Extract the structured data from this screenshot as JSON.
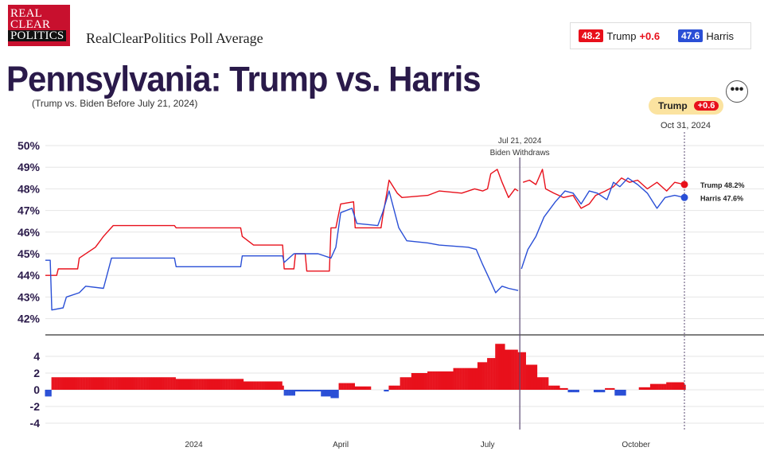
{
  "header": {
    "logo_lines": [
      "REAL",
      "CLEAR",
      "POLITICS"
    ],
    "brand": "RealClearPolitics Poll Average",
    "legend": [
      {
        "value": "48.2",
        "name": "Trump",
        "change": "+0.6",
        "color": "#e8101b"
      },
      {
        "value": "47.6",
        "name": "Harris",
        "change": "",
        "color": "#2a4fd6"
      }
    ],
    "title": "Pennsylvania: Trump vs. Harris",
    "subtitle": "(Trump vs. Biden Before July 21, 2024)",
    "more_icon": "more-options-icon",
    "leader": {
      "name": "Trump",
      "change": "+0.6"
    },
    "current_date": "Oct 31, 2024"
  },
  "chart_data": {
    "type": "line",
    "x_axis": {
      "start": "2023-10-01",
      "end": "2024-10-31",
      "ticks": [
        {
          "label": "2024",
          "date": "2024-01-01"
        },
        {
          "label": "April",
          "date": "2024-04-01"
        },
        {
          "label": "July",
          "date": "2024-07-01"
        },
        {
          "label": "October",
          "date": "2024-10-01"
        }
      ]
    },
    "y_axis": {
      "ylim": [
        41.5,
        50
      ],
      "ticks": [
        42,
        43,
        44,
        45,
        46,
        47,
        48,
        49,
        50
      ],
      "tick_suffix": "%"
    },
    "spread_axis": {
      "ylim": [
        -4.5,
        6
      ],
      "ticks": [
        4,
        2,
        0,
        -2,
        -4
      ]
    },
    "annotation": {
      "date": "2024-07-21",
      "lines": [
        "Jul 21, 2024",
        "Biden Withdraws"
      ]
    },
    "series": [
      {
        "name": "Trump",
        "color": "#e8101b",
        "end_label": "Trump 48.2%",
        "points": [
          [
            "2023-10-01",
            44.0
          ],
          [
            "2023-10-08",
            44.0
          ],
          [
            "2023-10-09",
            44.3
          ],
          [
            "2023-10-21",
            44.3
          ],
          [
            "2023-10-22",
            44.8
          ],
          [
            "2023-11-01",
            45.3
          ],
          [
            "2023-11-06",
            45.8
          ],
          [
            "2023-11-12",
            46.3
          ],
          [
            "2023-12-20",
            46.3
          ],
          [
            "2023-12-21",
            46.2
          ],
          [
            "2024-01-30",
            46.2
          ],
          [
            "2024-01-31",
            45.8
          ],
          [
            "2024-02-07",
            45.4
          ],
          [
            "2024-02-25",
            45.4
          ],
          [
            "2024-02-26",
            44.3
          ],
          [
            "2024-03-03",
            44.3
          ],
          [
            "2024-03-04",
            45.0
          ],
          [
            "2024-03-10",
            45.0
          ],
          [
            "2024-03-11",
            44.2
          ],
          [
            "2024-03-25",
            44.2
          ],
          [
            "2024-03-26",
            46.2
          ],
          [
            "2024-03-29",
            46.2
          ],
          [
            "2024-04-01",
            47.3
          ],
          [
            "2024-04-09",
            47.4
          ],
          [
            "2024-04-10",
            46.2
          ],
          [
            "2024-04-26",
            46.2
          ],
          [
            "2024-04-27",
            46.7
          ],
          [
            "2024-05-01",
            48.4
          ],
          [
            "2024-05-06",
            47.8
          ],
          [
            "2024-05-09",
            47.6
          ],
          [
            "2024-05-25",
            47.7
          ],
          [
            "2024-06-01",
            47.9
          ],
          [
            "2024-06-15",
            47.8
          ],
          [
            "2024-06-23",
            48.0
          ],
          [
            "2024-06-28",
            47.9
          ],
          [
            "2024-07-01",
            48.0
          ],
          [
            "2024-07-03",
            48.7
          ],
          [
            "2024-07-07",
            48.9
          ],
          [
            "2024-07-10",
            48.3
          ],
          [
            "2024-07-14",
            47.6
          ],
          [
            "2024-07-18",
            48.0
          ],
          [
            "2024-07-20",
            47.9
          ],
          [
            "2024-07-23",
            48.3
          ],
          [
            "2024-07-27",
            48.4
          ],
          [
            "2024-07-31",
            48.2
          ],
          [
            "2024-08-04",
            48.9
          ],
          [
            "2024-08-06",
            48.0
          ],
          [
            "2024-08-11",
            47.8
          ],
          [
            "2024-08-17",
            47.6
          ],
          [
            "2024-08-23",
            47.7
          ],
          [
            "2024-08-28",
            47.1
          ],
          [
            "2024-09-02",
            47.3
          ],
          [
            "2024-09-06",
            47.7
          ],
          [
            "2024-09-12",
            47.9
          ],
          [
            "2024-09-17",
            48.1
          ],
          [
            "2024-09-22",
            48.5
          ],
          [
            "2024-09-27",
            48.3
          ],
          [
            "2024-10-02",
            48.4
          ],
          [
            "2024-10-08",
            48.0
          ],
          [
            "2024-10-14",
            48.3
          ],
          [
            "2024-10-20",
            47.9
          ],
          [
            "2024-10-25",
            48.3
          ],
          [
            "2024-10-31",
            48.2
          ]
        ]
      },
      {
        "name": "Harris",
        "color": "#2a4fd6",
        "end_label": "Harris 47.6%",
        "points": [
          [
            "2023-10-01",
            44.7
          ],
          [
            "2023-10-04",
            44.7
          ],
          [
            "2023-10-05",
            42.4
          ],
          [
            "2023-10-12",
            42.5
          ],
          [
            "2023-10-14",
            43.0
          ],
          [
            "2023-10-22",
            43.2
          ],
          [
            "2023-10-26",
            43.5
          ],
          [
            "2023-11-06",
            43.4
          ],
          [
            "2023-11-11",
            44.8
          ],
          [
            "2023-12-20",
            44.8
          ],
          [
            "2023-12-21",
            44.4
          ],
          [
            "2024-01-30",
            44.4
          ],
          [
            "2024-01-31",
            44.9
          ],
          [
            "2024-02-25",
            44.9
          ],
          [
            "2024-02-26",
            44.6
          ],
          [
            "2024-03-03",
            45.0
          ],
          [
            "2024-03-18",
            45.0
          ],
          [
            "2024-03-26",
            44.8
          ],
          [
            "2024-03-29",
            45.3
          ],
          [
            "2024-04-01",
            46.9
          ],
          [
            "2024-04-08",
            47.1
          ],
          [
            "2024-04-11",
            46.4
          ],
          [
            "2024-04-24",
            46.3
          ],
          [
            "2024-04-27",
            46.9
          ],
          [
            "2024-05-01",
            47.9
          ],
          [
            "2024-05-07",
            46.2
          ],
          [
            "2024-05-12",
            45.6
          ],
          [
            "2024-05-25",
            45.5
          ],
          [
            "2024-06-01",
            45.4
          ],
          [
            "2024-06-19",
            45.3
          ],
          [
            "2024-06-24",
            45.2
          ],
          [
            "2024-06-28",
            44.5
          ],
          [
            "2024-07-03",
            43.7
          ],
          [
            "2024-07-06",
            43.2
          ],
          [
            "2024-07-10",
            43.5
          ],
          [
            "2024-07-14",
            43.4
          ],
          [
            "2024-07-20",
            43.3
          ],
          [
            "2024-07-22",
            44.3
          ],
          [
            "2024-07-26",
            45.2
          ],
          [
            "2024-07-31",
            45.8
          ],
          [
            "2024-08-05",
            46.7
          ],
          [
            "2024-08-12",
            47.4
          ],
          [
            "2024-08-18",
            47.9
          ],
          [
            "2024-08-23",
            47.8
          ],
          [
            "2024-08-28",
            47.3
          ],
          [
            "2024-09-02",
            47.9
          ],
          [
            "2024-09-07",
            47.8
          ],
          [
            "2024-09-13",
            47.5
          ],
          [
            "2024-09-17",
            48.3
          ],
          [
            "2024-09-21",
            48.1
          ],
          [
            "2024-09-26",
            48.5
          ],
          [
            "2024-10-02",
            48.2
          ],
          [
            "2024-10-08",
            47.8
          ],
          [
            "2024-10-14",
            47.1
          ],
          [
            "2024-10-19",
            47.6
          ],
          [
            "2024-10-25",
            47.7
          ],
          [
            "2024-10-31",
            47.6
          ]
        ]
      }
    ],
    "spread": {
      "name": "Trump lead",
      "positive_color": "#e8101b",
      "negative_color": "#2a4fd6",
      "points": [
        [
          "2023-10-01",
          -0.8
        ],
        [
          "2023-10-05",
          1.5
        ],
        [
          "2023-12-20",
          1.5
        ],
        [
          "2023-12-21",
          1.3
        ],
        [
          "2024-02-01",
          1.0
        ],
        [
          "2024-02-25",
          0.5
        ],
        [
          "2024-02-26",
          -0.7
        ],
        [
          "2024-03-04",
          -0.2
        ],
        [
          "2024-03-20",
          -0.8
        ],
        [
          "2024-03-26",
          -1.0
        ],
        [
          "2024-03-31",
          0.8
        ],
        [
          "2024-04-10",
          0.4
        ],
        [
          "2024-04-20",
          0.0
        ],
        [
          "2024-04-28",
          -0.2
        ],
        [
          "2024-05-01",
          0.5
        ],
        [
          "2024-05-08",
          1.5
        ],
        [
          "2024-05-15",
          2.0
        ],
        [
          "2024-05-25",
          2.2
        ],
        [
          "2024-06-10",
          2.6
        ],
        [
          "2024-06-25",
          3.3
        ],
        [
          "2024-07-01",
          3.8
        ],
        [
          "2024-07-06",
          5.5
        ],
        [
          "2024-07-12",
          4.8
        ],
        [
          "2024-07-20",
          4.5
        ],
        [
          "2024-07-25",
          3.0
        ],
        [
          "2024-08-01",
          1.5
        ],
        [
          "2024-08-08",
          0.5
        ],
        [
          "2024-08-15",
          0.2
        ],
        [
          "2024-08-20",
          -0.3
        ],
        [
          "2024-08-27",
          0.0
        ],
        [
          "2024-09-05",
          -0.3
        ],
        [
          "2024-09-12",
          0.2
        ],
        [
          "2024-09-18",
          -0.7
        ],
        [
          "2024-09-25",
          0.0
        ],
        [
          "2024-10-03",
          0.3
        ],
        [
          "2024-10-10",
          0.7
        ],
        [
          "2024-10-20",
          0.9
        ],
        [
          "2024-10-31",
          0.6
        ]
      ]
    }
  }
}
